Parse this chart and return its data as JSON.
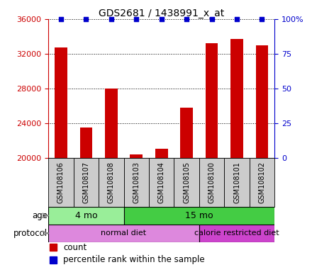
{
  "title": "GDS2681 / 1438991_x_at",
  "samples": [
    "GSM108106",
    "GSM108107",
    "GSM108108",
    "GSM108103",
    "GSM108104",
    "GSM108105",
    "GSM108100",
    "GSM108101",
    "GSM108102"
  ],
  "counts": [
    32700,
    23500,
    28000,
    20400,
    21000,
    25800,
    33200,
    33700,
    33000
  ],
  "ylim": [
    20000,
    36000
  ],
  "yticks": [
    20000,
    24000,
    28000,
    32000,
    36000
  ],
  "y2ticks": [
    0,
    25,
    50,
    75,
    100
  ],
  "y2labels": [
    "0",
    "25",
    "50",
    "75",
    "100%"
  ],
  "bar_color": "#cc0000",
  "dot_color": "#0000cc",
  "age_groups": [
    {
      "label": "4 mo",
      "start": 0,
      "end": 3,
      "color": "#99ee99"
    },
    {
      "label": "15 mo",
      "start": 3,
      "end": 9,
      "color": "#44cc44"
    }
  ],
  "protocol_groups": [
    {
      "label": "normal diet",
      "start": 0,
      "end": 6,
      "color": "#dd88dd"
    },
    {
      "label": "calorie restricted diet",
      "start": 6,
      "end": 9,
      "color": "#cc44cc"
    }
  ],
  "label_bg_color": "#cccccc",
  "bar_width": 0.5
}
